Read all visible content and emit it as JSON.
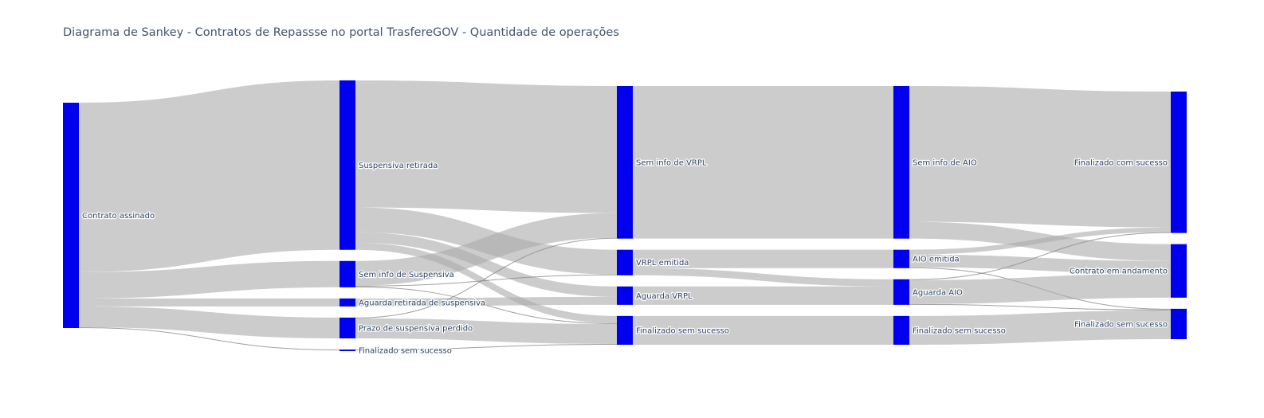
{
  "chart_data": {
    "type": "sankey",
    "title": "Diagrama de Sankey - Contratos de Repassse no portal TrasfereGOV - Quantidade de operações",
    "node_color": "#0000ee",
    "link_color": "#aaaaaa",
    "nodes": [
      {
        "id": "contrato_assinado",
        "label": "Contrato assinado",
        "column": 0
      },
      {
        "id": "suspensiva_retirada",
        "label": "Suspensiva retirada",
        "column": 1
      },
      {
        "id": "sem_info_suspensiva",
        "label": "Sem info de Suspensiva",
        "column": 1
      },
      {
        "id": "aguarda_retirada",
        "label": "Aguarda retirada de suspensiva",
        "column": 1
      },
      {
        "id": "prazo_perdido",
        "label": "Prazo de suspensiva perdido",
        "column": 1
      },
      {
        "id": "fin_sem_sucesso_1",
        "label": "Finalizado sem sucesso",
        "column": 1
      },
      {
        "id": "sem_info_vrpl",
        "label": "Sem info de VRPL",
        "column": 2
      },
      {
        "id": "vrpl_emitida",
        "label": "VRPL emitida",
        "column": 2
      },
      {
        "id": "aguarda_vrpl",
        "label": "Aguarda VRPL",
        "column": 2
      },
      {
        "id": "fin_sem_sucesso_2",
        "label": "Finalizado sem sucesso",
        "column": 2
      },
      {
        "id": "sem_info_aio",
        "label": "Sem info de AIO",
        "column": 3
      },
      {
        "id": "aio_emitida",
        "label": "AIO emitida",
        "column": 3
      },
      {
        "id": "aguarda_aio",
        "label": "Aguarda AIO",
        "column": 3
      },
      {
        "id": "fin_sem_sucesso_3",
        "label": "Finalizado sem sucesso",
        "column": 3
      },
      {
        "id": "fin_com_sucesso",
        "label": "Finalizado com sucesso",
        "column": 4
      },
      {
        "id": "contrato_andamento",
        "label": "Contrato em andamento",
        "column": 4
      },
      {
        "id": "fin_sem_sucesso_4",
        "label": "Finalizado sem sucesso",
        "column": 4
      }
    ],
    "links": [
      {
        "source": "contrato_assinado",
        "target": "suspensiva_retirada",
        "value": 212
      },
      {
        "source": "contrato_assinado",
        "target": "sem_info_suspensiva",
        "value": 33
      },
      {
        "source": "contrato_assinado",
        "target": "aguarda_retirada",
        "value": 10
      },
      {
        "source": "contrato_assinado",
        "target": "prazo_perdido",
        "value": 26
      },
      {
        "source": "contrato_assinado",
        "target": "fin_sem_sucesso_1",
        "value": 1
      },
      {
        "source": "suspensiva_retirada",
        "target": "sem_info_vrpl",
        "value": 159
      },
      {
        "source": "suspensiva_retirada",
        "target": "vrpl_emitida",
        "value": 31
      },
      {
        "source": "suspensiva_retirada",
        "target": "aguarda_vrpl",
        "value": 13
      },
      {
        "source": "suspensiva_retirada",
        "target": "fin_sem_sucesso_2",
        "value": 9
      },
      {
        "source": "sem_info_suspensiva",
        "target": "sem_info_vrpl",
        "value": 31
      },
      {
        "source": "sem_info_suspensiva",
        "target": "vrpl_emitida",
        "value": 1
      },
      {
        "source": "sem_info_suspensiva",
        "target": "fin_sem_sucesso_2",
        "value": 1
      },
      {
        "source": "aguarda_retirada",
        "target": "aguarda_vrpl",
        "value": 10
      },
      {
        "source": "prazo_perdido",
        "target": "sem_info_vrpl",
        "value": 1
      },
      {
        "source": "prazo_perdido",
        "target": "fin_sem_sucesso_2",
        "value": 25
      },
      {
        "source": "fin_sem_sucesso_1",
        "target": "fin_sem_sucesso_2",
        "value": 1
      },
      {
        "source": "sem_info_vrpl",
        "target": "sem_info_aio",
        "value": 191
      },
      {
        "source": "vrpl_emitida",
        "target": "aio_emitida",
        "value": 23
      },
      {
        "source": "vrpl_emitida",
        "target": "aguarda_aio",
        "value": 9
      },
      {
        "source": "aguarda_vrpl",
        "target": "aguarda_aio",
        "value": 23
      },
      {
        "source": "fin_sem_sucesso_2",
        "target": "fin_sem_sucesso_3",
        "value": 36
      },
      {
        "source": "sem_info_aio",
        "target": "fin_com_sucesso",
        "value": 170
      },
      {
        "source": "sem_info_aio",
        "target": "contrato_andamento",
        "value": 21
      },
      {
        "source": "aio_emitida",
        "target": "fin_com_sucesso",
        "value": 6
      },
      {
        "source": "aio_emitida",
        "target": "contrato_andamento",
        "value": 16
      },
      {
        "source": "aio_emitida",
        "target": "fin_sem_sucesso_4",
        "value": 1
      },
      {
        "source": "aguarda_aio",
        "target": "fin_com_sucesso",
        "value": 1
      },
      {
        "source": "aguarda_aio",
        "target": "contrato_andamento",
        "value": 30
      },
      {
        "source": "aguarda_aio",
        "target": "fin_sem_sucesso_4",
        "value": 1
      },
      {
        "source": "fin_sem_sucesso_3",
        "target": "fin_sem_sucesso_4",
        "value": 36
      }
    ]
  }
}
